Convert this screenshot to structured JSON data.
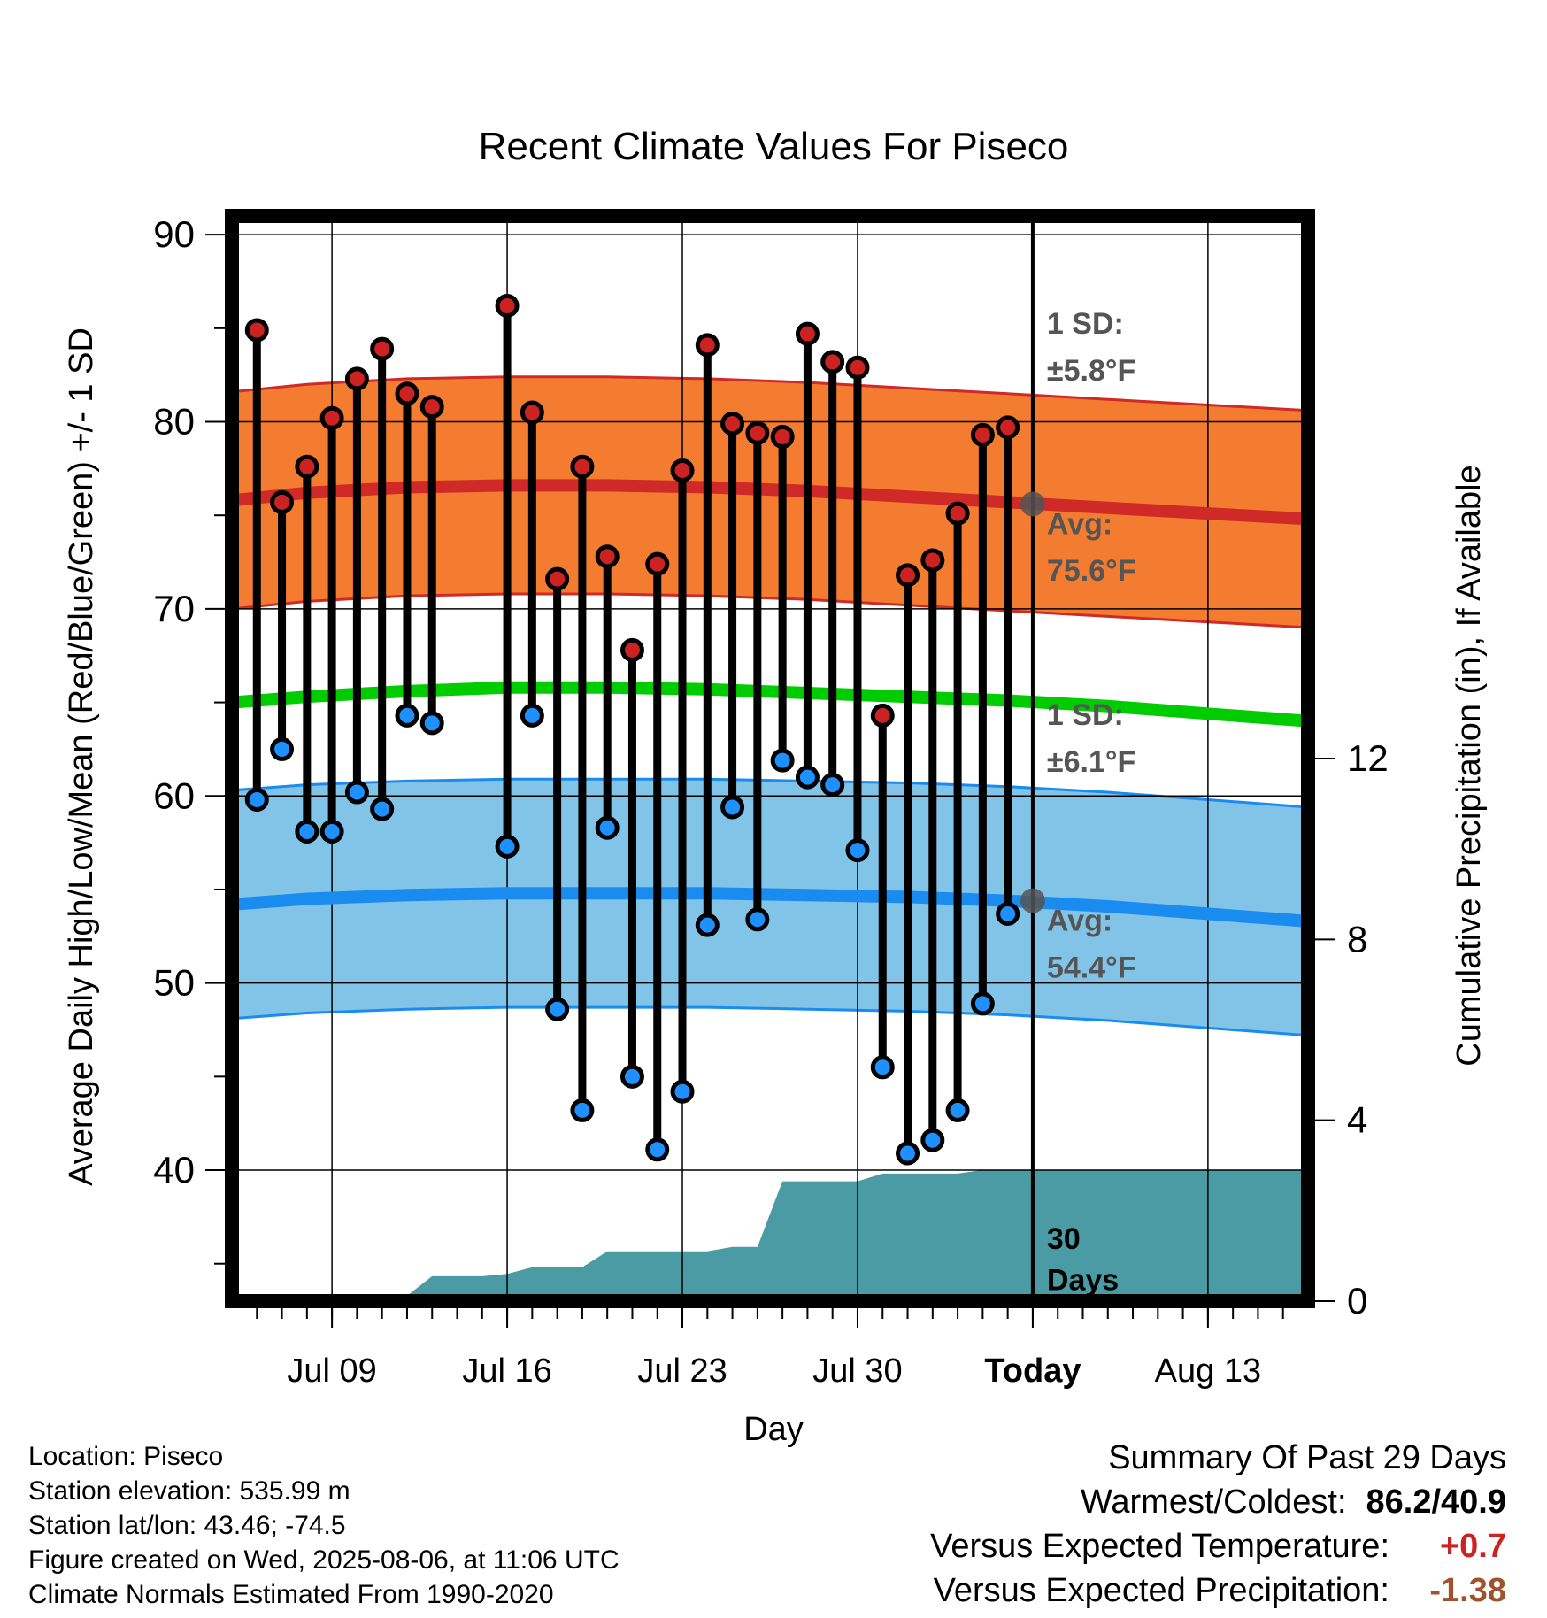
{
  "chart_data": {
    "type": "line",
    "title": "Recent Climate Values For Piseco",
    "xlabel": "Day",
    "ylabel_left": "Average Daily High/Low/Mean (Red/Blue/Green) +/- 1 SD",
    "ylabel_right": "Cumulative Precipitation (in), If Available",
    "xlim": [
      "2025-07-05",
      "2025-08-17"
    ],
    "ylim_left": [
      33,
      91
    ],
    "ylim_right": [
      0,
      24
    ],
    "left_ticks": [
      40,
      50,
      60,
      70,
      80,
      90
    ],
    "right_ticks": [
      0,
      4,
      8,
      12
    ],
    "x_ticks": [
      {
        "date": "2025-07-09",
        "label": "Jul 09"
      },
      {
        "date": "2025-07-16",
        "label": "Jul 16"
      },
      {
        "date": "2025-07-23",
        "label": "Jul 23"
      },
      {
        "date": "2025-07-30",
        "label": "Jul 30"
      },
      {
        "date": "2025-08-06",
        "label": "Today"
      },
      {
        "date": "2025-08-13",
        "label": "Aug 13"
      }
    ],
    "today": "2025-08-06",
    "grid": true,
    "daily": {
      "dates": [
        "2025-07-06",
        "2025-07-07",
        "2025-07-08",
        "2025-07-09",
        "2025-07-10",
        "2025-07-11",
        "2025-07-12",
        "2025-07-13",
        "2025-07-14",
        "2025-07-15",
        "2025-07-16",
        "2025-07-17",
        "2025-07-18",
        "2025-07-19",
        "2025-07-20",
        "2025-07-21",
        "2025-07-22",
        "2025-07-23",
        "2025-07-24",
        "2025-07-25",
        "2025-07-26",
        "2025-07-27",
        "2025-07-28",
        "2025-07-29",
        "2025-07-30",
        "2025-07-31",
        "2025-08-01",
        "2025-08-02",
        "2025-08-03",
        "2025-08-04",
        "2025-08-05"
      ],
      "high": [
        84.9,
        75.7,
        77.6,
        80.2,
        82.3,
        83.9,
        81.5,
        80.8,
        null,
        null,
        86.2,
        80.5,
        71.6,
        77.6,
        72.8,
        67.8,
        72.4,
        77.4,
        84.1,
        79.9,
        79.4,
        79.2,
        84.7,
        83.2,
        82.9,
        64.3,
        71.8,
        72.6,
        75.1,
        79.3,
        79.7
      ],
      "low": [
        59.8,
        62.5,
        58.1,
        58.1,
        60.2,
        59.3,
        64.3,
        63.9,
        null,
        null,
        57.3,
        64.3,
        48.6,
        43.2,
        58.3,
        45.0,
        41.1,
        44.2,
        53.1,
        59.4,
        53.4,
        61.9,
        61.0,
        60.6,
        57.1,
        45.5,
        40.9,
        41.6,
        43.2,
        48.9,
        53.7
      ]
    },
    "normals": {
      "dates": [
        "2025-07-05",
        "2025-07-08",
        "2025-07-12",
        "2025-07-16",
        "2025-07-20",
        "2025-07-24",
        "2025-07-28",
        "2025-08-01",
        "2025-08-05",
        "2025-08-09",
        "2025-08-13",
        "2025-08-17"
      ],
      "high_avg": [
        75.8,
        76.2,
        76.5,
        76.6,
        76.6,
        76.5,
        76.3,
        76.0,
        75.7,
        75.4,
        75.1,
        74.8
      ],
      "low_avg": [
        54.2,
        54.5,
        54.7,
        54.8,
        54.8,
        54.8,
        54.7,
        54.6,
        54.4,
        54.1,
        53.7,
        53.3
      ],
      "mean_avg": [
        65.0,
        65.3,
        65.6,
        65.8,
        65.8,
        65.7,
        65.5,
        65.3,
        65.1,
        64.8,
        64.4,
        64.0
      ],
      "high_sd": 5.8,
      "low_sd": 6.1
    },
    "precip": {
      "dates": [
        "2025-07-06",
        "2025-07-08",
        "2025-07-09",
        "2025-07-10",
        "2025-07-11",
        "2025-07-12",
        "2025-07-13",
        "2025-07-14",
        "2025-07-15",
        "2025-07-16",
        "2025-07-17",
        "2025-07-18",
        "2025-07-19",
        "2025-07-20",
        "2025-07-21",
        "2025-07-22",
        "2025-07-23",
        "2025-07-24",
        "2025-07-25",
        "2025-07-26",
        "2025-07-27",
        "2025-07-28",
        "2025-07-29",
        "2025-07-30",
        "2025-07-31",
        "2025-08-01",
        "2025-08-02",
        "2025-08-03",
        "2025-08-04",
        "2025-08-05",
        "2025-08-06",
        "2025-08-17"
      ],
      "values": [
        0.05,
        0.05,
        0.08,
        0.12,
        0.12,
        0.12,
        0.55,
        0.55,
        0.55,
        0.6,
        0.75,
        0.75,
        0.75,
        1.1,
        1.1,
        1.1,
        1.1,
        1.1,
        1.2,
        1.2,
        2.65,
        2.65,
        2.65,
        2.65,
        2.82,
        2.82,
        2.82,
        2.82,
        2.9,
        2.9,
        2.9,
        2.9
      ]
    },
    "annotations": {
      "high_sd_label": "1 SD:",
      "high_sd_value": "±5.8°F",
      "high_avg_label": "Avg:",
      "high_avg_value": "75.6°F",
      "low_sd_label": "1 SD:",
      "low_sd_value": "±6.1°F",
      "low_avg_label": "Avg:",
      "low_avg_value": "54.4°F",
      "precip_days_1": "30",
      "precip_days_2": "Days",
      "today_high_avg": 75.6,
      "today_low_avg": 54.4
    },
    "colors": {
      "high_band": "#f47c30",
      "high_line": "#d02a28",
      "low_band": "#82c3e8",
      "low_line": "#1a8cf0",
      "mean_line": "#00cc00",
      "precip": "#4a9ba3",
      "high_dot": "#cc2222",
      "low_dot": "#1e90ff",
      "annotation": "#555555"
    }
  },
  "footer": {
    "location": "Location: Piseco",
    "elevation": "Station elevation: 535.99 m",
    "latlon": "Station lat/lon: 43.46; -74.5",
    "created": "Figure created on Wed, 2025-08-06, at 11:06 UTC",
    "normals": "Climate Normals Estimated From 1990-2020"
  },
  "summary": {
    "title": "Summary Of Past 29 Days",
    "warm_cold_label": "Warmest/Coldest:",
    "warm_cold_value": "86.2/40.9",
    "temp_label": "Versus Expected Temperature:",
    "temp_value": "+0.7",
    "temp_color": "#cc2222",
    "precip_label": "Versus Expected Precipitation:",
    "precip_value": "-1.38",
    "precip_color": "#a0522d"
  }
}
